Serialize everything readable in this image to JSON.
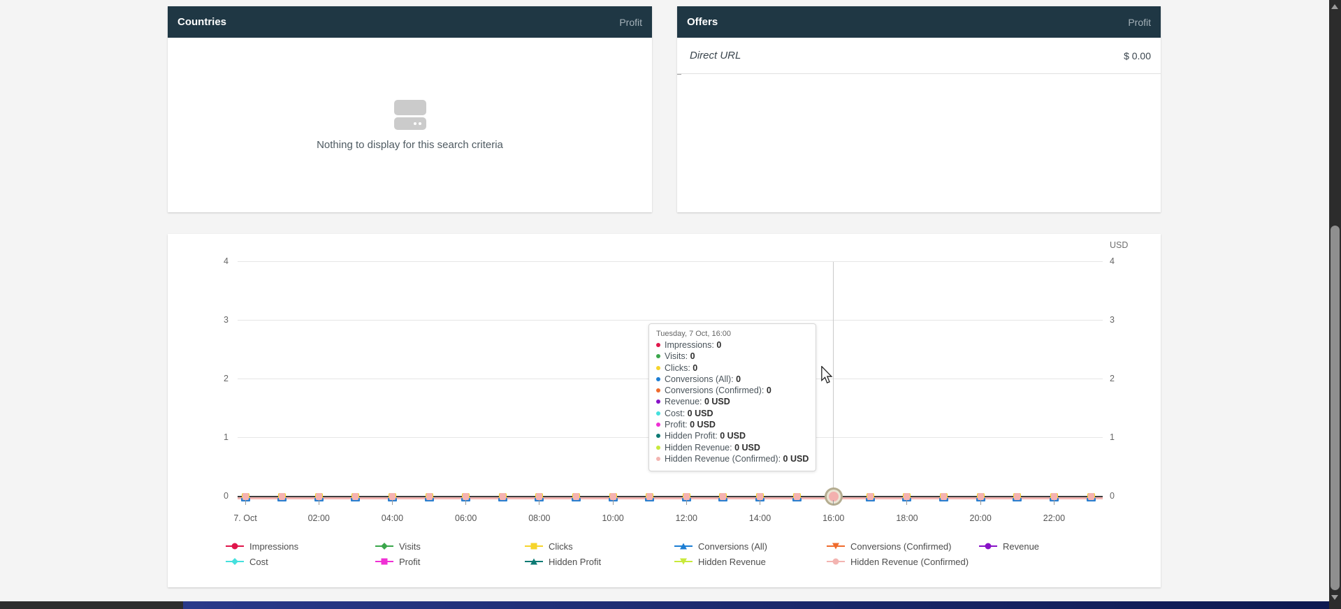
{
  "countries_panel": {
    "title": "Countries",
    "metric": "Profit",
    "empty_text": "Nothing to display for this search criteria"
  },
  "offers_panel": {
    "title": "Offers",
    "metric": "Profit",
    "rows": [
      {
        "name": "Direct URL",
        "value": "$ 0.00"
      }
    ]
  },
  "chart": {
    "unit_label": "USD",
    "y_tick_labels": [
      "4",
      "3",
      "2",
      "1",
      "0"
    ],
    "x_tick_labels": [
      "7. Oct",
      "02:00",
      "04:00",
      "06:00",
      "08:00",
      "10:00",
      "12:00",
      "14:00",
      "16:00",
      "18:00",
      "20:00",
      "22:00"
    ],
    "highlight_index": 16,
    "tooltip": {
      "title": "Tuesday, 7 Oct, 16:00",
      "rows": [
        {
          "label": "Impressions",
          "value": "0",
          "color": "#e0164b"
        },
        {
          "label": "Visits",
          "value": "0",
          "color": "#3aa64b"
        },
        {
          "label": "Clicks",
          "value": "0",
          "color": "#f6d42b"
        },
        {
          "label": "Conversions (All)",
          "value": "0",
          "color": "#1d7ed3"
        },
        {
          "label": "Conversions (Confirmed)",
          "value": "0",
          "color": "#ef6b2d"
        },
        {
          "label": "Revenue",
          "value": "0 USD",
          "color": "#8812c7"
        },
        {
          "label": "Cost",
          "value": "0 USD",
          "color": "#45e0dd"
        },
        {
          "label": "Profit",
          "value": "0 USD",
          "color": "#ef2fd4"
        },
        {
          "label": "Hidden Profit",
          "value": "0 USD",
          "color": "#0d7a74"
        },
        {
          "label": "Hidden Revenue",
          "value": "0 USD",
          "color": "#c8e93b"
        },
        {
          "label": "Hidden Revenue (Confirmed)",
          "value": "0 USD",
          "color": "#f3b4b1"
        }
      ]
    },
    "legend": {
      "row1": [
        {
          "label": "Impressions",
          "color": "#e0164b",
          "shape": "circle"
        },
        {
          "label": "Visits",
          "color": "#3aa64b",
          "shape": "diamond"
        },
        {
          "label": "Clicks",
          "color": "#f6d42b",
          "shape": "square"
        },
        {
          "label": "Conversions (All)",
          "color": "#1d7ed3",
          "shape": "triangle-up"
        },
        {
          "label": "Conversions (Confirmed)",
          "color": "#ef6b2d",
          "shape": "triangle-down"
        },
        {
          "label": "Revenue",
          "color": "#8812c7",
          "shape": "circle"
        }
      ],
      "row2": [
        {
          "label": "Cost",
          "color": "#45e0dd",
          "shape": "diamond"
        },
        {
          "label": "Profit",
          "color": "#ef2fd4",
          "shape": "square"
        },
        {
          "label": "Hidden Profit",
          "color": "#0d7a74",
          "shape": "triangle-up"
        },
        {
          "label": "Hidden Revenue",
          "color": "#c8e93b",
          "shape": "triangle-down"
        },
        {
          "label": "Hidden Revenue (Confirmed)",
          "color": "#f3b4b1",
          "shape": "circle"
        }
      ]
    }
  },
  "chart_data": {
    "type": "line",
    "title": "",
    "xlabel": "",
    "ylabel": "USD",
    "ylim": [
      0,
      4
    ],
    "grid": true,
    "legend_position": "bottom",
    "x": [
      "7. Oct 00:00",
      "01:00",
      "02:00",
      "03:00",
      "04:00",
      "05:00",
      "06:00",
      "07:00",
      "08:00",
      "09:00",
      "10:00",
      "11:00",
      "12:00",
      "13:00",
      "14:00",
      "15:00",
      "16:00",
      "17:00",
      "18:00",
      "19:00",
      "20:00",
      "21:00",
      "22:00",
      "23:00"
    ],
    "visible_x_ticks": [
      "7. Oct",
      "02:00",
      "04:00",
      "06:00",
      "08:00",
      "10:00",
      "12:00",
      "14:00",
      "16:00",
      "18:00",
      "20:00",
      "22:00"
    ],
    "series": [
      {
        "name": "Impressions",
        "color": "#e0164b",
        "values": [
          0,
          0,
          0,
          0,
          0,
          0,
          0,
          0,
          0,
          0,
          0,
          0,
          0,
          0,
          0,
          0,
          0,
          0,
          0,
          0,
          0,
          0,
          0,
          0
        ]
      },
      {
        "name": "Visits",
        "color": "#3aa64b",
        "values": [
          0,
          0,
          0,
          0,
          0,
          0,
          0,
          0,
          0,
          0,
          0,
          0,
          0,
          0,
          0,
          0,
          0,
          0,
          0,
          0,
          0,
          0,
          0,
          0
        ]
      },
      {
        "name": "Clicks",
        "color": "#f6d42b",
        "values": [
          0,
          0,
          0,
          0,
          0,
          0,
          0,
          0,
          0,
          0,
          0,
          0,
          0,
          0,
          0,
          0,
          0,
          0,
          0,
          0,
          0,
          0,
          0,
          0
        ]
      },
      {
        "name": "Conversions (All)",
        "color": "#1d7ed3",
        "values": [
          0,
          0,
          0,
          0,
          0,
          0,
          0,
          0,
          0,
          0,
          0,
          0,
          0,
          0,
          0,
          0,
          0,
          0,
          0,
          0,
          0,
          0,
          0,
          0
        ]
      },
      {
        "name": "Conversions (Confirmed)",
        "color": "#ef6b2d",
        "values": [
          0,
          0,
          0,
          0,
          0,
          0,
          0,
          0,
          0,
          0,
          0,
          0,
          0,
          0,
          0,
          0,
          0,
          0,
          0,
          0,
          0,
          0,
          0,
          0
        ]
      },
      {
        "name": "Revenue",
        "color": "#8812c7",
        "values": [
          0,
          0,
          0,
          0,
          0,
          0,
          0,
          0,
          0,
          0,
          0,
          0,
          0,
          0,
          0,
          0,
          0,
          0,
          0,
          0,
          0,
          0,
          0,
          0
        ]
      },
      {
        "name": "Cost",
        "color": "#45e0dd",
        "values": [
          0,
          0,
          0,
          0,
          0,
          0,
          0,
          0,
          0,
          0,
          0,
          0,
          0,
          0,
          0,
          0,
          0,
          0,
          0,
          0,
          0,
          0,
          0,
          0
        ]
      },
      {
        "name": "Profit",
        "color": "#ef2fd4",
        "values": [
          0,
          0,
          0,
          0,
          0,
          0,
          0,
          0,
          0,
          0,
          0,
          0,
          0,
          0,
          0,
          0,
          0,
          0,
          0,
          0,
          0,
          0,
          0,
          0
        ]
      },
      {
        "name": "Hidden Profit",
        "color": "#0d7a74",
        "values": [
          0,
          0,
          0,
          0,
          0,
          0,
          0,
          0,
          0,
          0,
          0,
          0,
          0,
          0,
          0,
          0,
          0,
          0,
          0,
          0,
          0,
          0,
          0,
          0
        ]
      },
      {
        "name": "Hidden Revenue",
        "color": "#c8e93b",
        "values": [
          0,
          0,
          0,
          0,
          0,
          0,
          0,
          0,
          0,
          0,
          0,
          0,
          0,
          0,
          0,
          0,
          0,
          0,
          0,
          0,
          0,
          0,
          0,
          0
        ]
      },
      {
        "name": "Hidden Revenue (Confirmed)",
        "color": "#f3b4b1",
        "values": [
          0,
          0,
          0,
          0,
          0,
          0,
          0,
          0,
          0,
          0,
          0,
          0,
          0,
          0,
          0,
          0,
          0,
          0,
          0,
          0,
          0,
          0,
          0,
          0
        ]
      }
    ],
    "highlighted_point": {
      "x": "16:00",
      "tooltip_title": "Tuesday, 7 Oct, 16:00"
    }
  }
}
